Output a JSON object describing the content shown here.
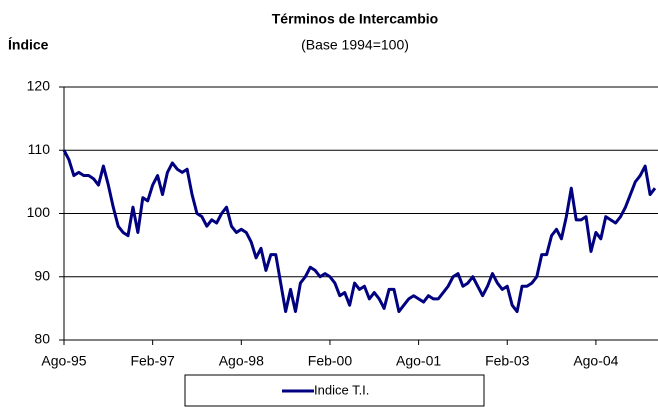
{
  "chart_data": {
    "type": "line",
    "title": "Términos de Intercambio",
    "subtitle": "(Base 1994=100)",
    "y_label": "Índice",
    "categories": [
      "Ago-95",
      null,
      null,
      null,
      null,
      null,
      null,
      null,
      null,
      null,
      null,
      null,
      null,
      null,
      null,
      null,
      null,
      null,
      "Feb-97",
      null,
      null,
      null,
      null,
      null,
      null,
      null,
      null,
      null,
      null,
      null,
      null,
      null,
      null,
      null,
      null,
      null,
      "Ago-98",
      null,
      null,
      null,
      null,
      null,
      null,
      null,
      null,
      null,
      null,
      null,
      null,
      null,
      null,
      null,
      null,
      null,
      "Feb-00",
      null,
      null,
      null,
      null,
      null,
      null,
      null,
      null,
      null,
      null,
      null,
      null,
      null,
      null,
      null,
      null,
      null,
      "Ago-01",
      null,
      null,
      null,
      null,
      null,
      null,
      null,
      null,
      null,
      null,
      null,
      null,
      null,
      null,
      null,
      null,
      null,
      "Feb-03",
      null,
      null,
      null,
      null,
      null,
      null,
      null,
      null,
      null,
      null,
      null,
      null,
      null,
      null,
      null,
      null,
      null,
      "Ago-04",
      null,
      null,
      null,
      null,
      null,
      null,
      null,
      null,
      null,
      null,
      null,
      null
    ],
    "series": [
      {
        "name": "Indice T.I.",
        "color": "#000080",
        "values": [
          110,
          108.5,
          106,
          106.5,
          106,
          106,
          105.5,
          104.5,
          107.5,
          104.5,
          101,
          98,
          97,
          96.5,
          101,
          97,
          102.5,
          102,
          104.5,
          106,
          103,
          106.5,
          108,
          107,
          106.5,
          107,
          103,
          100,
          99.5,
          98,
          99,
          98.5,
          100,
          101,
          98,
          97,
          97.5,
          97,
          95.5,
          93,
          94.5,
          91,
          93.5,
          93.5,
          89,
          84.5,
          88,
          84.5,
          89,
          90,
          91.5,
          91,
          90,
          90.5,
          90,
          89,
          87,
          87.5,
          85.5,
          89,
          88,
          88.5,
          86.5,
          87.5,
          86.5,
          85,
          88,
          88,
          84.5,
          85.5,
          86.5,
          87,
          86.5,
          86,
          87,
          86.5,
          86.5,
          87.5,
          88.5,
          90,
          90.5,
          88.5,
          89,
          90,
          88.5,
          87,
          88.5,
          90.5,
          89,
          88,
          88.5,
          85.5,
          84.5,
          88.5,
          88.5,
          89,
          90,
          93.5,
          93.5,
          96.5,
          97.5,
          96,
          99.5,
          104,
          99,
          99,
          99.5,
          94,
          97,
          96,
          99.5,
          99,
          98.5,
          99.5,
          101,
          103,
          105,
          106,
          107.5,
          103,
          104
        ]
      }
    ],
    "ylim": [
      80,
      120
    ],
    "yticks": [
      80,
      90,
      100,
      110,
      120
    ],
    "grid": true
  }
}
